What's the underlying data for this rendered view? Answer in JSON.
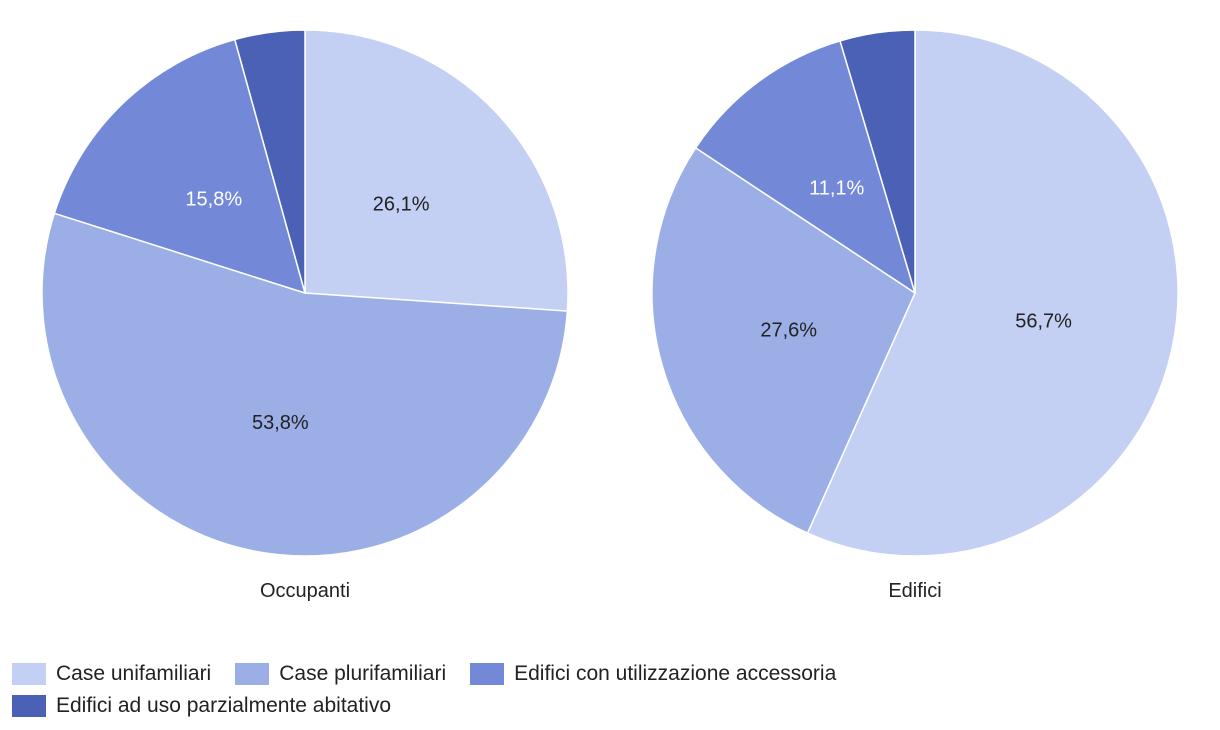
{
  "chart_data": [
    {
      "type": "pie",
      "caption": "Occupanti",
      "slices": [
        {
          "name": "Case unifamiliari",
          "value": 26.1,
          "label": "26,1%"
        },
        {
          "name": "Case plurifamiliari",
          "value": 53.8,
          "label": "53,8%"
        },
        {
          "name": "Edifici con utilizzazione accessoria",
          "value": 15.8,
          "label": "15,8%"
        },
        {
          "name": "Edifici ad uso parzialmente abitativo",
          "value": 4.3,
          "label": ""
        }
      ]
    },
    {
      "type": "pie",
      "caption": "Edifici",
      "slices": [
        {
          "name": "Case unifamiliari",
          "value": 56.7,
          "label": "56,7%"
        },
        {
          "name": "Case plurifamiliari",
          "value": 27.6,
          "label": "27,6%"
        },
        {
          "name": "Edifici con utilizzazione accessoria",
          "value": 11.1,
          "label": "11,1%"
        },
        {
          "name": "Edifici ad uso parzialmente abitativo",
          "value": 4.6,
          "label": ""
        }
      ]
    }
  ],
  "legend": {
    "placement": "bottom-left",
    "items": [
      {
        "label": "Case unifamiliari",
        "color": "#c3cff3"
      },
      {
        "label": "Case plurifamiliari",
        "color": "#9baee6"
      },
      {
        "label": "Edifici con utilizzazione accessoria",
        "color": "#7389d8"
      },
      {
        "label": "Edifici ad uso parzialmente abitativo",
        "color": "#4a61b5"
      }
    ]
  },
  "colors": [
    "#c3cff3",
    "#9baee6",
    "#7389d8",
    "#4a61b5"
  ],
  "label_colors": [
    "#222222",
    "#222222",
    "#ffffff",
    "#ffffff"
  ]
}
